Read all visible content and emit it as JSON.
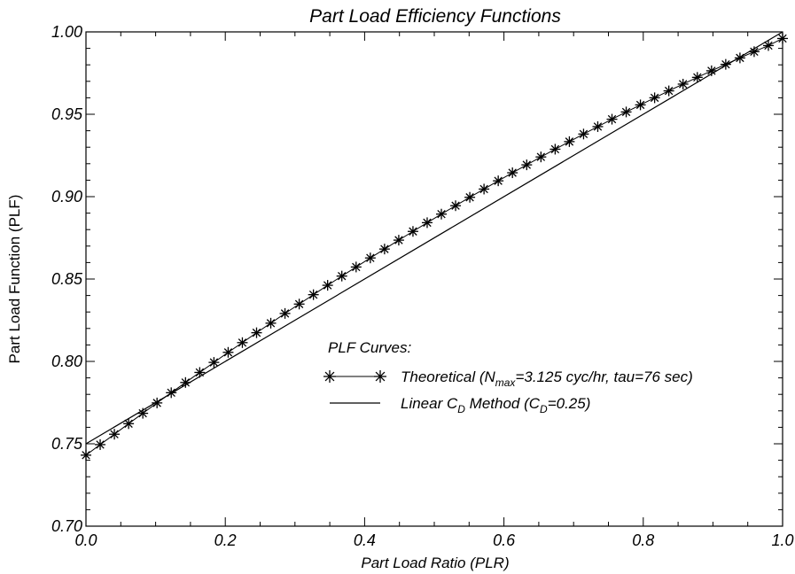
{
  "chart_data": {
    "type": "line",
    "title": "Part Load Efficiency Functions",
    "xlabel": "Part Load Ratio (PLR)",
    "ylabel": "Part Load Function (PLF)",
    "xlim": [
      0.0,
      1.0
    ],
    "ylim": [
      0.7,
      1.0
    ],
    "x_ticks": [
      "0.0",
      "0.2",
      "0.4",
      "0.6",
      "0.8",
      "1.0"
    ],
    "y_ticks": [
      "0.70",
      "0.75",
      "0.80",
      "0.85",
      "0.90",
      "0.95",
      "1.00"
    ],
    "grid": false,
    "legend": {
      "title": "PLF Curves:",
      "placement": "center-right"
    },
    "series": [
      {
        "name": "Theoretical (N_max=3.125 cyc/hr, tau=76 sec)",
        "legend_parts": [
          "Theoretical (N",
          "max",
          "=3.125 cyc/hr, tau=76 sec)"
        ],
        "marker": "asterisk",
        "line": "solid",
        "x": [
          0.0,
          0.0204,
          0.0408,
          0.0612,
          0.0816,
          0.102,
          0.1224,
          0.1429,
          0.1633,
          0.1837,
          0.2041,
          0.2245,
          0.2449,
          0.2653,
          0.2857,
          0.3061,
          0.3265,
          0.3469,
          0.3673,
          0.3878,
          0.4082,
          0.4286,
          0.449,
          0.4694,
          0.4898,
          0.5102,
          0.5306,
          0.551,
          0.5714,
          0.5918,
          0.6122,
          0.6327,
          0.6531,
          0.6735,
          0.6939,
          0.7143,
          0.7347,
          0.7551,
          0.7755,
          0.7959,
          0.8163,
          0.8367,
          0.8571,
          0.8776,
          0.898,
          0.9184,
          0.9388,
          0.9592,
          0.9796,
          1.0
        ],
        "y": [
          0.7431,
          0.7495,
          0.7558,
          0.7622,
          0.7685,
          0.7748,
          0.781,
          0.7872,
          0.7933,
          0.7994,
          0.8055,
          0.8114,
          0.8174,
          0.8232,
          0.8291,
          0.8348,
          0.8405,
          0.8462,
          0.8518,
          0.8573,
          0.8628,
          0.8682,
          0.8736,
          0.8789,
          0.8842,
          0.8894,
          0.8945,
          0.8996,
          0.9046,
          0.9096,
          0.9145,
          0.9193,
          0.9241,
          0.9288,
          0.9334,
          0.938,
          0.9425,
          0.947,
          0.9514,
          0.9557,
          0.96,
          0.9642,
          0.9683,
          0.9724,
          0.9764,
          0.9803,
          0.9842,
          0.988,
          0.9917,
          0.996
        ]
      },
      {
        "name": "Linear C_D Method (C_D=0.25)",
        "legend_parts": [
          "Linear C",
          "D",
          " Method (C",
          "D",
          "=0.25)"
        ],
        "marker": "none",
        "line": "solid",
        "x": [
          0.0,
          1.0
        ],
        "y": [
          0.75,
          1.0
        ]
      }
    ]
  }
}
